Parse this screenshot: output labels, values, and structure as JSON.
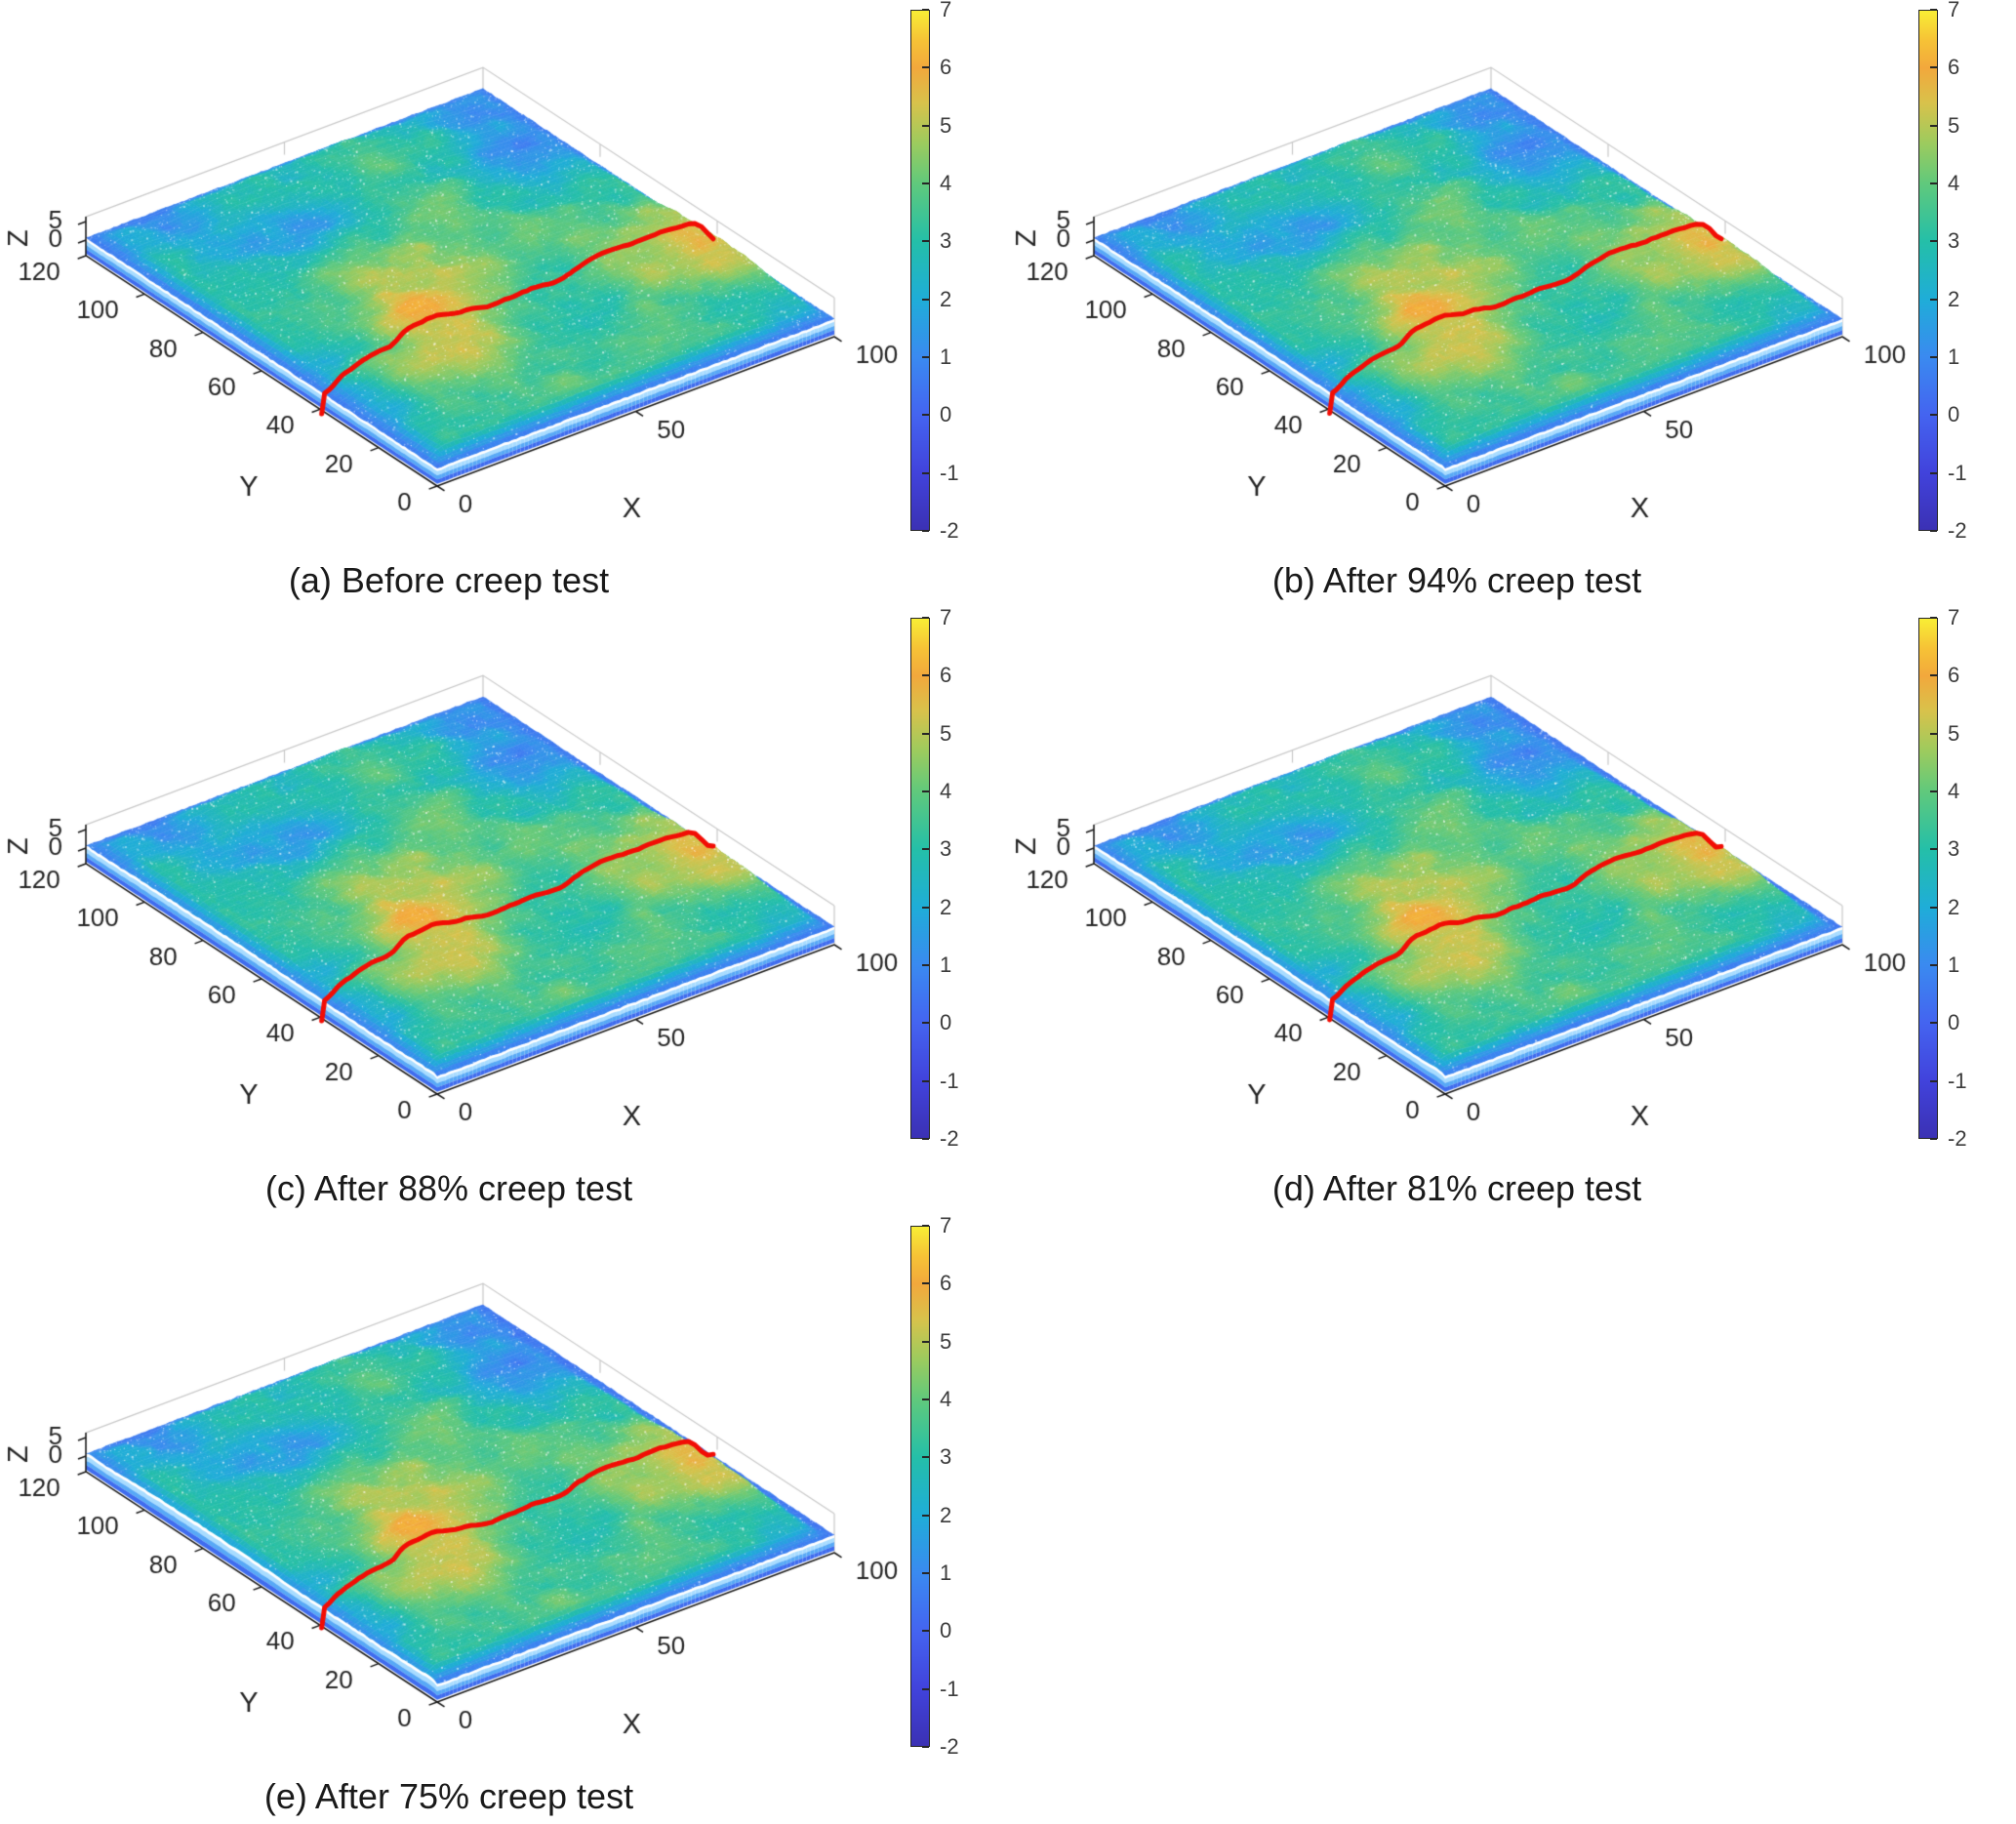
{
  "chart_data": {
    "type": "surface",
    "layout": "2-column by 3-row grid of identical 3D surface plots, last grid cell empty, colorbar at right of each plot",
    "panels": [
      {
        "id": "a",
        "caption": "(a) Before creep test"
      },
      {
        "id": "b",
        "caption": "(b) After 94% creep test"
      },
      {
        "id": "c",
        "caption": "(c) After 88% creep test"
      },
      {
        "id": "d",
        "caption": "(d) After 81% creep test"
      },
      {
        "id": "e",
        "caption": "(e) After 75% creep test"
      }
    ],
    "axes": {
      "x": {
        "label": "X",
        "range": [
          0,
          100
        ],
        "ticks": [
          0,
          50,
          100
        ]
      },
      "y": {
        "label": "Y",
        "range": [
          0,
          120
        ],
        "ticks": [
          0,
          20,
          40,
          60,
          80,
          100,
          120
        ]
      },
      "z": {
        "label": "Z",
        "ticks": [
          0,
          5
        ]
      }
    },
    "colorbar": {
      "min": -2,
      "max": 7,
      "ticks": [
        7,
        6,
        5,
        4,
        3,
        2,
        1,
        0,
        -1,
        -2
      ]
    },
    "surface_description": "Rough specimen surface topography shown with a parula-style colormap: predominantly teal/green heights (z≈2-4) with mottled yellow-orange high patches (z≈5-6), a layered blue skirt along the two front edges, white speckle highlights, and light gray box gridlines behind the surface.",
    "red_line": {
      "color": "#f20d05",
      "description": "red cross-section profile line drawn on top of the surface, running across the full X range at Y≈36-46, dropping over the front-left edge at X=0"
    }
  },
  "style": {
    "colormap_stops": [
      {
        "v": -2,
        "c": "#3b31b4"
      },
      {
        "v": -1,
        "c": "#4143dc"
      },
      {
        "v": 0,
        "c": "#4464f0"
      },
      {
        "v": 1,
        "c": "#3a8af0"
      },
      {
        "v": 2,
        "c": "#1fadd8"
      },
      {
        "v": 3,
        "c": "#24bfa8"
      },
      {
        "v": 4,
        "c": "#60c97c"
      },
      {
        "v": 4.7,
        "c": "#9ccb5e"
      },
      {
        "v": 5.4,
        "c": "#d8c24b"
      },
      {
        "v": 6,
        "c": "#f2a83c"
      },
      {
        "v": 6.5,
        "c": "#f6c336"
      },
      {
        "v": 7,
        "c": "#f8ee35"
      }
    ],
    "axis_color": "#1a1a1a",
    "tick_label_color": "#262626",
    "colorbar_label_color": "#3c3c3c",
    "grid_color": "#c9c9c9",
    "background": "#ffffff",
    "caption_color": "#1a1a1a"
  }
}
